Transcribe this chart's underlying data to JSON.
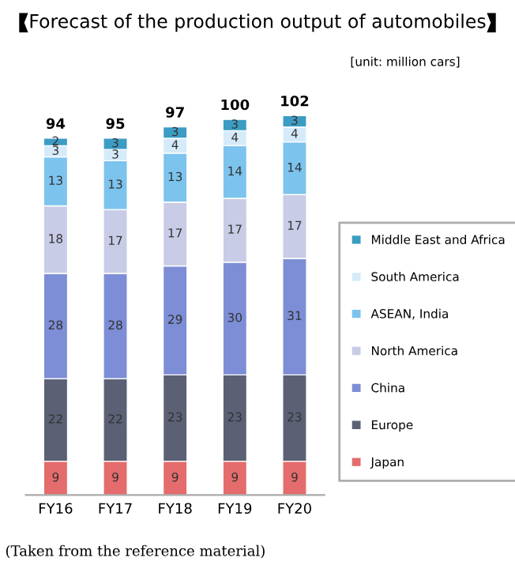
{
  "chart_data": {
    "type": "bar",
    "title": "Forecast of the production output of automobiles",
    "categories": [
      "FY16",
      "FY17",
      "FY18",
      "FY19",
      "FY20"
    ],
    "stacked": true,
    "data_labels": true,
    "legend": "right",
    "grid": false,
    "series": [
      {
        "name": "Japan",
        "color": "#e46c6c",
        "values": [
          9,
          9,
          9,
          9,
          9
        ]
      },
      {
        "name": "Europe",
        "color": "#5b6075",
        "values": [
          22,
          22,
          23,
          23,
          23
        ]
      },
      {
        "name": "China",
        "color": "#7d8ed6",
        "values": [
          28,
          28,
          29,
          30,
          31
        ]
      },
      {
        "name": "North America",
        "color": "#c9cce6",
        "values": [
          18,
          17,
          17,
          17,
          17
        ]
      },
      {
        "name": "ASEAN, India",
        "color": "#7cc3ee",
        "values": [
          13,
          13,
          13,
          14,
          14
        ]
      },
      {
        "name": "South America",
        "color": "#d6ebfa",
        "values": [
          3,
          3,
          4,
          4,
          4
        ]
      },
      {
        "name": "Middle East and Africa",
        "color": "#3b9cc4",
        "values": [
          2,
          3,
          3,
          3,
          3
        ]
      }
    ],
    "totals": [
      "94",
      "95",
      "97",
      "100",
      "102"
    ],
    "annotations": [
      "[unit: million cars]",
      "(Taken from the reference material)"
    ]
  }
}
